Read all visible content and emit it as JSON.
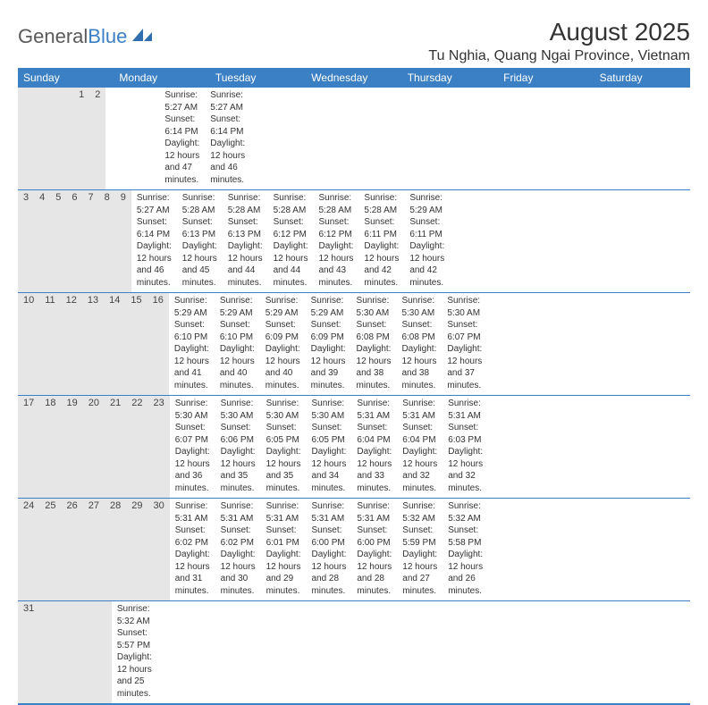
{
  "logo": {
    "text1": "General",
    "text2": "Blue"
  },
  "title": "August 2025",
  "location": "Tu Nghia, Quang Ngai Province, Vietnam",
  "colors": {
    "header_bg": "#3b7fc4",
    "daynum_bg": "#e6e6e6",
    "border": "#3b7fc4",
    "text": "#333333"
  },
  "weekdays": [
    "Sunday",
    "Monday",
    "Tuesday",
    "Wednesday",
    "Thursday",
    "Friday",
    "Saturday"
  ],
  "weeks": [
    [
      {
        "n": "",
        "sr": "",
        "ss": "",
        "dl": ""
      },
      {
        "n": "",
        "sr": "",
        "ss": "",
        "dl": ""
      },
      {
        "n": "",
        "sr": "",
        "ss": "",
        "dl": ""
      },
      {
        "n": "",
        "sr": "",
        "ss": "",
        "dl": ""
      },
      {
        "n": "",
        "sr": "",
        "ss": "",
        "dl": ""
      },
      {
        "n": "1",
        "sr": "Sunrise: 5:27 AM",
        "ss": "Sunset: 6:14 PM",
        "dl": "Daylight: 12 hours and 47 minutes."
      },
      {
        "n": "2",
        "sr": "Sunrise: 5:27 AM",
        "ss": "Sunset: 6:14 PM",
        "dl": "Daylight: 12 hours and 46 minutes."
      }
    ],
    [
      {
        "n": "3",
        "sr": "Sunrise: 5:27 AM",
        "ss": "Sunset: 6:14 PM",
        "dl": "Daylight: 12 hours and 46 minutes."
      },
      {
        "n": "4",
        "sr": "Sunrise: 5:28 AM",
        "ss": "Sunset: 6:13 PM",
        "dl": "Daylight: 12 hours and 45 minutes."
      },
      {
        "n": "5",
        "sr": "Sunrise: 5:28 AM",
        "ss": "Sunset: 6:13 PM",
        "dl": "Daylight: 12 hours and 44 minutes."
      },
      {
        "n": "6",
        "sr": "Sunrise: 5:28 AM",
        "ss": "Sunset: 6:12 PM",
        "dl": "Daylight: 12 hours and 44 minutes."
      },
      {
        "n": "7",
        "sr": "Sunrise: 5:28 AM",
        "ss": "Sunset: 6:12 PM",
        "dl": "Daylight: 12 hours and 43 minutes."
      },
      {
        "n": "8",
        "sr": "Sunrise: 5:28 AM",
        "ss": "Sunset: 6:11 PM",
        "dl": "Daylight: 12 hours and 42 minutes."
      },
      {
        "n": "9",
        "sr": "Sunrise: 5:29 AM",
        "ss": "Sunset: 6:11 PM",
        "dl": "Daylight: 12 hours and 42 minutes."
      }
    ],
    [
      {
        "n": "10",
        "sr": "Sunrise: 5:29 AM",
        "ss": "Sunset: 6:10 PM",
        "dl": "Daylight: 12 hours and 41 minutes."
      },
      {
        "n": "11",
        "sr": "Sunrise: 5:29 AM",
        "ss": "Sunset: 6:10 PM",
        "dl": "Daylight: 12 hours and 40 minutes."
      },
      {
        "n": "12",
        "sr": "Sunrise: 5:29 AM",
        "ss": "Sunset: 6:09 PM",
        "dl": "Daylight: 12 hours and 40 minutes."
      },
      {
        "n": "13",
        "sr": "Sunrise: 5:29 AM",
        "ss": "Sunset: 6:09 PM",
        "dl": "Daylight: 12 hours and 39 minutes."
      },
      {
        "n": "14",
        "sr": "Sunrise: 5:30 AM",
        "ss": "Sunset: 6:08 PM",
        "dl": "Daylight: 12 hours and 38 minutes."
      },
      {
        "n": "15",
        "sr": "Sunrise: 5:30 AM",
        "ss": "Sunset: 6:08 PM",
        "dl": "Daylight: 12 hours and 38 minutes."
      },
      {
        "n": "16",
        "sr": "Sunrise: 5:30 AM",
        "ss": "Sunset: 6:07 PM",
        "dl": "Daylight: 12 hours and 37 minutes."
      }
    ],
    [
      {
        "n": "17",
        "sr": "Sunrise: 5:30 AM",
        "ss": "Sunset: 6:07 PM",
        "dl": "Daylight: 12 hours and 36 minutes."
      },
      {
        "n": "18",
        "sr": "Sunrise: 5:30 AM",
        "ss": "Sunset: 6:06 PM",
        "dl": "Daylight: 12 hours and 35 minutes."
      },
      {
        "n": "19",
        "sr": "Sunrise: 5:30 AM",
        "ss": "Sunset: 6:05 PM",
        "dl": "Daylight: 12 hours and 35 minutes."
      },
      {
        "n": "20",
        "sr": "Sunrise: 5:30 AM",
        "ss": "Sunset: 6:05 PM",
        "dl": "Daylight: 12 hours and 34 minutes."
      },
      {
        "n": "21",
        "sr": "Sunrise: 5:31 AM",
        "ss": "Sunset: 6:04 PM",
        "dl": "Daylight: 12 hours and 33 minutes."
      },
      {
        "n": "22",
        "sr": "Sunrise: 5:31 AM",
        "ss": "Sunset: 6:04 PM",
        "dl": "Daylight: 12 hours and 32 minutes."
      },
      {
        "n": "23",
        "sr": "Sunrise: 5:31 AM",
        "ss": "Sunset: 6:03 PM",
        "dl": "Daylight: 12 hours and 32 minutes."
      }
    ],
    [
      {
        "n": "24",
        "sr": "Sunrise: 5:31 AM",
        "ss": "Sunset: 6:02 PM",
        "dl": "Daylight: 12 hours and 31 minutes."
      },
      {
        "n": "25",
        "sr": "Sunrise: 5:31 AM",
        "ss": "Sunset: 6:02 PM",
        "dl": "Daylight: 12 hours and 30 minutes."
      },
      {
        "n": "26",
        "sr": "Sunrise: 5:31 AM",
        "ss": "Sunset: 6:01 PM",
        "dl": "Daylight: 12 hours and 29 minutes."
      },
      {
        "n": "27",
        "sr": "Sunrise: 5:31 AM",
        "ss": "Sunset: 6:00 PM",
        "dl": "Daylight: 12 hours and 28 minutes."
      },
      {
        "n": "28",
        "sr": "Sunrise: 5:31 AM",
        "ss": "Sunset: 6:00 PM",
        "dl": "Daylight: 12 hours and 28 minutes."
      },
      {
        "n": "29",
        "sr": "Sunrise: 5:32 AM",
        "ss": "Sunset: 5:59 PM",
        "dl": "Daylight: 12 hours and 27 minutes."
      },
      {
        "n": "30",
        "sr": "Sunrise: 5:32 AM",
        "ss": "Sunset: 5:58 PM",
        "dl": "Daylight: 12 hours and 26 minutes."
      }
    ],
    [
      {
        "n": "31",
        "sr": "Sunrise: 5:32 AM",
        "ss": "Sunset: 5:57 PM",
        "dl": "Daylight: 12 hours and 25 minutes."
      },
      {
        "n": "",
        "sr": "",
        "ss": "",
        "dl": ""
      },
      {
        "n": "",
        "sr": "",
        "ss": "",
        "dl": ""
      },
      {
        "n": "",
        "sr": "",
        "ss": "",
        "dl": ""
      },
      {
        "n": "",
        "sr": "",
        "ss": "",
        "dl": ""
      },
      {
        "n": "",
        "sr": "",
        "ss": "",
        "dl": ""
      },
      {
        "n": "",
        "sr": "",
        "ss": "",
        "dl": ""
      }
    ]
  ]
}
